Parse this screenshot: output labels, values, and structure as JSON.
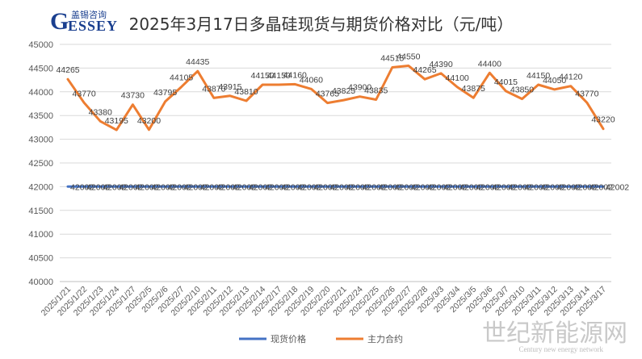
{
  "logo": {
    "letter": "G",
    "main": "ESSEY",
    "sub": "盖锡咨询"
  },
  "watermark": {
    "main": "世纪新能源网",
    "sub": "Century new energy network"
  },
  "colors": {
    "spot": "#4472C4",
    "futures": "#ED7D31",
    "grid": "#d9d9d9",
    "text": "#595959"
  },
  "chart_data": {
    "type": "line",
    "title": "2025年3月17日多晶硅现货与期货价格对比（元/吨）",
    "xlabel": "",
    "ylabel": "",
    "ylim": [
      40000,
      45000
    ],
    "yticks": [
      40000,
      40500,
      41000,
      41500,
      42000,
      42500,
      43000,
      43500,
      44000,
      44500,
      45000
    ],
    "grid": "horizontal",
    "legend_position": "bottom",
    "categories": [
      "2025/1/21",
      "2025/1/22",
      "2025/1/23",
      "2025/1/24",
      "2025/1/27",
      "2025/2/5",
      "2025/2/6",
      "2025/2/7",
      "2025/2/10",
      "2025/2/11",
      "2025/2/12",
      "2025/2/13",
      "2025/2/14",
      "2025/2/17",
      "2025/2/18",
      "2025/2/19",
      "2025/2/20",
      "2025/2/21",
      "2025/2/24",
      "2025/2/25",
      "2025/2/26",
      "2025/2/27",
      "2025/2/28",
      "2025/3/3",
      "2025/3/4",
      "2025/3/5",
      "2025/3/6",
      "2025/3/7",
      "2025/3/10",
      "2025/3/11",
      "2025/3/12",
      "2025/3/13",
      "2025/3/14",
      "2025/3/17"
    ],
    "series": [
      {
        "name": "现货价格",
        "color": "#4472C4",
        "label_text": "42002",
        "values": [
          42002,
          42002,
          42002,
          42002,
          42002,
          42002,
          42002,
          42002,
          42002,
          42002,
          42002,
          42002,
          42002,
          42002,
          42002,
          42002,
          42002,
          42002,
          42002,
          42002,
          42002,
          42002,
          42002,
          42002,
          42002,
          42002,
          42002,
          42002,
          42002,
          42002,
          42002,
          42002,
          42002,
          42002
        ]
      },
      {
        "name": "主力合约",
        "color": "#ED7D31",
        "values": [
          44265,
          43770,
          43380,
          43195,
          43730,
          43200,
          43795,
          44105,
          44435,
          43870,
          43915,
          43810,
          44150,
          44150,
          44160,
          44060,
          43765,
          43825,
          43900,
          43835,
          44515,
          44550,
          44265,
          44390,
          44100,
          43875,
          44400,
          44015,
          43850,
          44150,
          44050,
          44120,
          43770,
          43220
        ]
      }
    ]
  }
}
